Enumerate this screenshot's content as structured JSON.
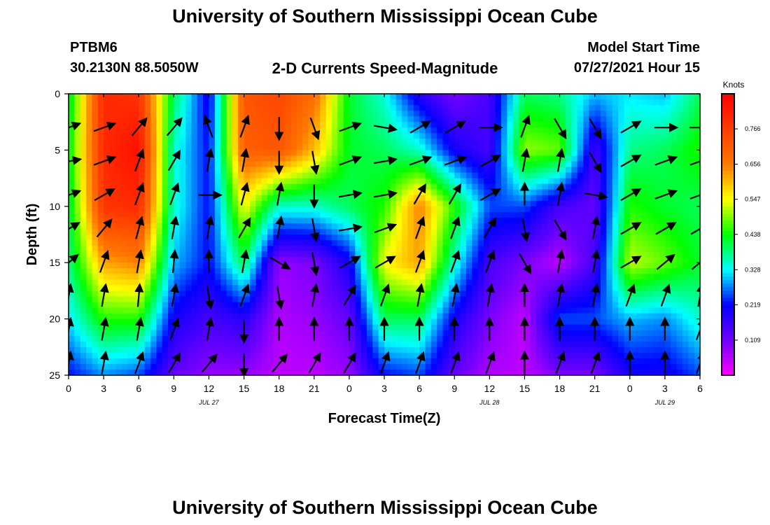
{
  "header": {
    "title_top": "University of Southern Mississippi Ocean Cube",
    "title_bottom": "University of Southern Mississippi Ocean Cube",
    "station": "PTBM6",
    "coords": "30.2130N  88.5050W",
    "chart_title": "2-D Currents Speed-Magnitude",
    "model_label": "Model Start Time",
    "model_time": "07/27/2021 Hour 15"
  },
  "chart_data": {
    "type": "heatmap",
    "title": "2-D Currents Speed-Magnitude",
    "xlabel": "Forecast Time(Z)",
    "ylabel": "Depth (ft)",
    "x_tick_labels": [
      "0",
      "3",
      "6",
      "9",
      "12",
      "15",
      "18",
      "21",
      "0",
      "3",
      "6",
      "9",
      "12",
      "15",
      "18",
      "21",
      "0",
      "3",
      "6"
    ],
    "date_labels": [
      {
        "label": "JUL 27",
        "hour": 12
      },
      {
        "label": "JUL 28",
        "hour": 36
      },
      {
        "label": "JUL 29",
        "hour": 51
      }
    ],
    "xlim": [
      0,
      54
    ],
    "y_ticks": [
      0,
      5,
      10,
      15,
      20,
      25
    ],
    "ylim": [
      0,
      25
    ],
    "y_inverted": true,
    "grid": false,
    "colorbar": {
      "units": "Knots",
      "ticks": [
        "0.766",
        "0.656",
        "0.547",
        "0.438",
        "0.328",
        "0.219",
        "0.109"
      ],
      "range": [
        0.0,
        0.875
      ]
    },
    "field_nodes": {
      "hours": [
        0,
        3,
        6,
        9,
        12,
        15,
        18,
        21,
        24,
        27,
        30,
        33,
        36,
        39,
        42,
        45,
        48,
        51,
        54
      ],
      "depths": [
        0,
        5,
        10,
        15,
        20,
        25
      ],
      "speed_knots": [
        [
          0.4,
          0.8,
          0.78,
          0.4,
          0.2,
          0.72,
          0.75,
          0.68,
          0.42,
          0.34,
          0.18,
          0.1,
          0.15,
          0.4,
          0.38,
          0.3,
          0.32,
          0.3,
          0.4
        ],
        [
          0.42,
          0.8,
          0.85,
          0.35,
          0.22,
          0.7,
          0.72,
          0.6,
          0.42,
          0.4,
          0.35,
          0.2,
          0.15,
          0.5,
          0.48,
          0.15,
          0.38,
          0.4,
          0.45
        ],
        [
          0.4,
          0.78,
          0.8,
          0.35,
          0.22,
          0.55,
          0.35,
          0.35,
          0.4,
          0.45,
          0.65,
          0.45,
          0.25,
          0.25,
          0.15,
          0.12,
          0.45,
          0.42,
          0.4
        ],
        [
          0.38,
          0.62,
          0.65,
          0.3,
          0.22,
          0.4,
          0.08,
          0.1,
          0.2,
          0.55,
          0.62,
          0.35,
          0.15,
          0.1,
          0.05,
          0.15,
          0.52,
          0.48,
          0.42
        ],
        [
          0.32,
          0.45,
          0.45,
          0.2,
          0.15,
          0.18,
          0.06,
          0.08,
          0.12,
          0.4,
          0.4,
          0.2,
          0.1,
          0.05,
          0.25,
          0.25,
          0.3,
          0.28,
          0.35
        ],
        [
          0.22,
          0.28,
          0.25,
          0.12,
          0.08,
          0.08,
          0.05,
          0.05,
          0.08,
          0.22,
          0.25,
          0.12,
          0.06,
          0.05,
          0.1,
          0.1,
          0.2,
          0.2,
          0.25
        ]
      ]
    },
    "vectors": {
      "hours": [
        0,
        3,
        6,
        9,
        12,
        15,
        18,
        21,
        24,
        27,
        30,
        33,
        36,
        39,
        42,
        45,
        48,
        51,
        54
      ],
      "depths": [
        3,
        6,
        9,
        12,
        15,
        18,
        21,
        24
      ],
      "direction_deg": [
        [
          70,
          70,
          40,
          40,
          340,
          20,
          180,
          160,
          70,
          100,
          60,
          60,
          90,
          20,
          150,
          150,
          60,
          90,
          90
        ],
        [
          80,
          70,
          20,
          30,
          10,
          10,
          180,
          170,
          70,
          80,
          70,
          70,
          60,
          10,
          10,
          150,
          60,
          70,
          70
        ],
        [
          70,
          60,
          20,
          20,
          90,
          15,
          10,
          180,
          80,
          80,
          30,
          30,
          60,
          0,
          10,
          100,
          60,
          70,
          70
        ],
        [
          60,
          40,
          15,
          10,
          10,
          30,
          10,
          170,
          80,
          70,
          20,
          20,
          30,
          170,
          150,
          10,
          60,
          60,
          60
        ],
        [
          50,
          20,
          10,
          5,
          0,
          10,
          120,
          170,
          60,
          60,
          20,
          20,
          20,
          150,
          10,
          10,
          60,
          50,
          50
        ],
        [
          10,
          10,
          5,
          10,
          170,
          20,
          170,
          10,
          30,
          20,
          10,
          10,
          10,
          0,
          10,
          10,
          20,
          20,
          10
        ],
        [
          10,
          10,
          10,
          20,
          10,
          180,
          0,
          0,
          0,
          0,
          0,
          0,
          0,
          0,
          0,
          0,
          0,
          0,
          20
        ],
        [
          10,
          10,
          20,
          30,
          40,
          180,
          40,
          30,
          30,
          20,
          20,
          20,
          20,
          0,
          20,
          20,
          0,
          0,
          20
        ]
      ]
    }
  }
}
